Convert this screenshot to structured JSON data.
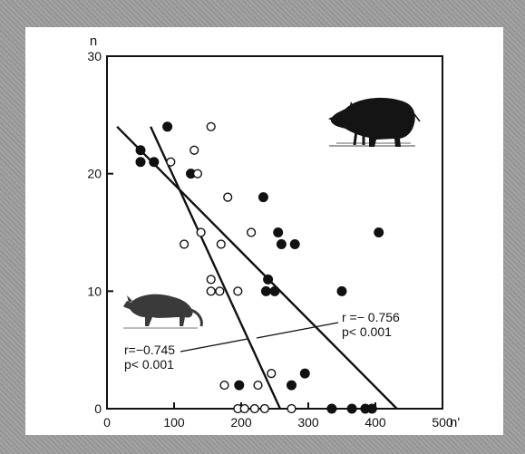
{
  "chart_data": {
    "type": "scatter",
    "title": "",
    "xlabel": "n'",
    "ylabel": "n",
    "xlim": [
      0,
      500
    ],
    "ylim": [
      0,
      30
    ],
    "x_ticks": [
      "0",
      "100",
      "200",
      "300",
      "400",
      "500"
    ],
    "y_ticks": [
      "0",
      "10",
      "20",
      "30"
    ],
    "grid": false,
    "series": [
      {
        "marker": "filled-circle",
        "color": "#111111",
        "points": [
          {
            "x": 50,
            "y": 22
          },
          {
            "x": 50,
            "y": 21
          },
          {
            "x": 70,
            "y": 21
          },
          {
            "x": 90,
            "y": 24
          },
          {
            "x": 125,
            "y": 20
          },
          {
            "x": 233,
            "y": 18
          },
          {
            "x": 255,
            "y": 15
          },
          {
            "x": 260,
            "y": 14
          },
          {
            "x": 280,
            "y": 14
          },
          {
            "x": 405,
            "y": 15
          },
          {
            "x": 240,
            "y": 11
          },
          {
            "x": 237,
            "y": 10
          },
          {
            "x": 250,
            "y": 10
          },
          {
            "x": 350,
            "y": 10
          },
          {
            "x": 295,
            "y": 3
          },
          {
            "x": 197,
            "y": 2
          },
          {
            "x": 275,
            "y": 2
          },
          {
            "x": 335,
            "y": 0
          },
          {
            "x": 365,
            "y": 0
          },
          {
            "x": 385,
            "y": 0
          },
          {
            "x": 395,
            "y": 0
          }
        ]
      },
      {
        "marker": "open-circle",
        "color": "#111111",
        "points": [
          {
            "x": 155,
            "y": 24
          },
          {
            "x": 130,
            "y": 22
          },
          {
            "x": 95,
            "y": 21
          },
          {
            "x": 135,
            "y": 20
          },
          {
            "x": 180,
            "y": 18
          },
          {
            "x": 215,
            "y": 15
          },
          {
            "x": 140,
            "y": 15
          },
          {
            "x": 115,
            "y": 14
          },
          {
            "x": 170,
            "y": 14
          },
          {
            "x": 155,
            "y": 11
          },
          {
            "x": 155,
            "y": 10
          },
          {
            "x": 168,
            "y": 10
          },
          {
            "x": 195,
            "y": 10
          },
          {
            "x": 245,
            "y": 3
          },
          {
            "x": 175,
            "y": 2
          },
          {
            "x": 225,
            "y": 2
          },
          {
            "x": 195,
            "y": 0
          },
          {
            "x": 205,
            "y": 0
          },
          {
            "x": 220,
            "y": 0
          },
          {
            "x": 235,
            "y": 0
          },
          {
            "x": 275,
            "y": 0
          }
        ]
      }
    ],
    "trend_lines": [
      {
        "from": [
          15,
          24
        ],
        "to": [
          432,
          0
        ],
        "r_label": "r =− 0.756",
        "p_label": "p<  0.001"
      },
      {
        "from": [
          65,
          24
        ],
        "to": [
          258,
          0
        ],
        "r_label": "r=−0.745",
        "p_label": "p< 0.001"
      }
    ],
    "illustrations": [
      {
        "icon": "wild-boar-icon",
        "location": "top-right"
      },
      {
        "icon": "fox-icon",
        "location": "middle-left"
      }
    ]
  }
}
